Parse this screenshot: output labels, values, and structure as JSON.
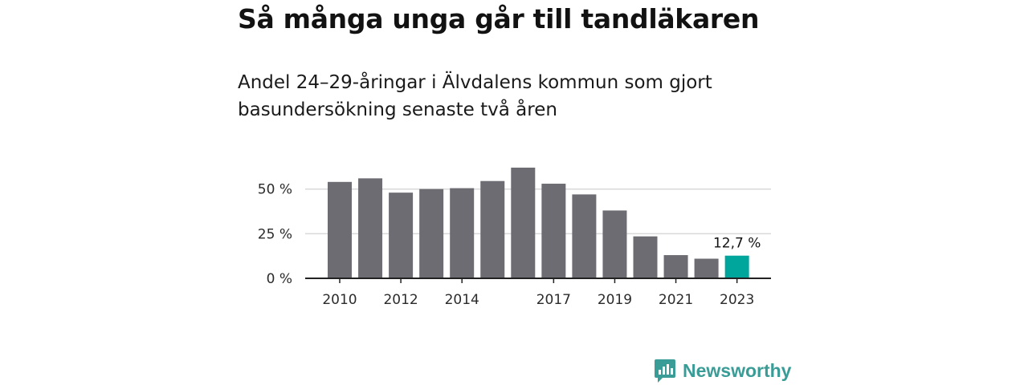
{
  "title": "Så många unga går till tandläkaren",
  "subtitle": "Andel 24–29-åringar i Älvdalens kommun som gjort basundersökning senaste två åren",
  "brand": "Newsworthy",
  "colors": {
    "bar": "#6d6c72",
    "highlight": "#00a69c",
    "grid": "#d9d9d9",
    "axis": "#222222",
    "brand": "#3a9c96"
  },
  "chart_data": {
    "type": "bar",
    "categories": [
      "2010",
      "2011",
      "2012",
      "2013",
      "2014",
      "2015",
      "2016",
      "2017",
      "2018",
      "2019",
      "2020",
      "2021",
      "2022",
      "2023"
    ],
    "values": [
      54,
      56,
      48,
      50,
      50.5,
      54.5,
      62,
      53,
      47,
      38,
      23.5,
      13,
      11,
      12.7
    ],
    "x_tick_labels": [
      "2010",
      "",
      "2012",
      "",
      "2014",
      "",
      "",
      "2017",
      "",
      "2019",
      "",
      "2021",
      "",
      "2023"
    ],
    "y_ticks": [
      0,
      25,
      50
    ],
    "y_tick_labels": [
      "0 %",
      "25 %",
      "50 %"
    ],
    "ylim": [
      0,
      62
    ],
    "highlight_index": 13,
    "highlight_label": "12,7 %",
    "grid": true
  }
}
